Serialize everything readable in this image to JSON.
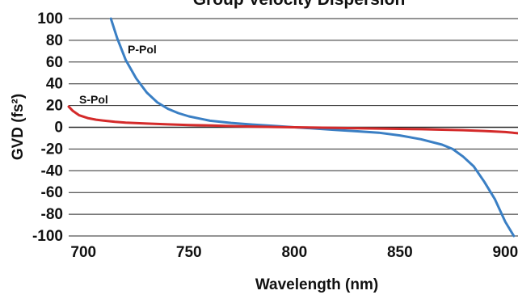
{
  "chart_data": {
    "type": "line",
    "title": "Group Velocity Dispersion",
    "xlabel": "Wavelength (nm)",
    "ylabel": "GVD (fs²)",
    "xlim": [
      693,
      906
    ],
    "ylim": [
      -100,
      100
    ],
    "x_ticks": [
      700,
      750,
      800,
      850,
      900
    ],
    "y_ticks": [
      100,
      80,
      60,
      40,
      20,
      0,
      -20,
      -40,
      -60,
      -80,
      -100
    ],
    "grid": true,
    "series": [
      {
        "name": "P-Pol",
        "color": "#3a7fc4",
        "x": [
          713,
          716,
          720,
          725,
          730,
          735,
          740,
          745,
          750,
          755,
          760,
          770,
          780,
          790,
          800,
          810,
          820,
          830,
          840,
          850,
          860,
          870,
          875,
          880,
          885,
          890,
          895,
          900,
          904
        ],
        "y": [
          100,
          82,
          62,
          45,
          32,
          23,
          17,
          13,
          10,
          8,
          6,
          4,
          2.5,
          1.3,
          0,
          -1.2,
          -2.5,
          -3.7,
          -5,
          -7.5,
          -11,
          -16,
          -20,
          -27,
          -36,
          -50,
          -66,
          -87,
          -100
        ]
      },
      {
        "name": "S-Pol",
        "color": "#d42a2a",
        "x": [
          693,
          695,
          698,
          702,
          706,
          710,
          715,
          720,
          730,
          740,
          750,
          760,
          770,
          780,
          790,
          800,
          810,
          820,
          830,
          840,
          850,
          860,
          870,
          880,
          890,
          900,
          906
        ],
        "y": [
          19,
          15,
          11,
          8.5,
          7,
          6,
          5,
          4.3,
          3.4,
          2.7,
          2.1,
          1.6,
          1.1,
          0.7,
          0.3,
          0,
          -0.3,
          -0.6,
          -0.9,
          -1.2,
          -1.5,
          -1.8,
          -2.2,
          -2.7,
          -3.4,
          -4.4,
          -5.5
        ]
      }
    ]
  }
}
